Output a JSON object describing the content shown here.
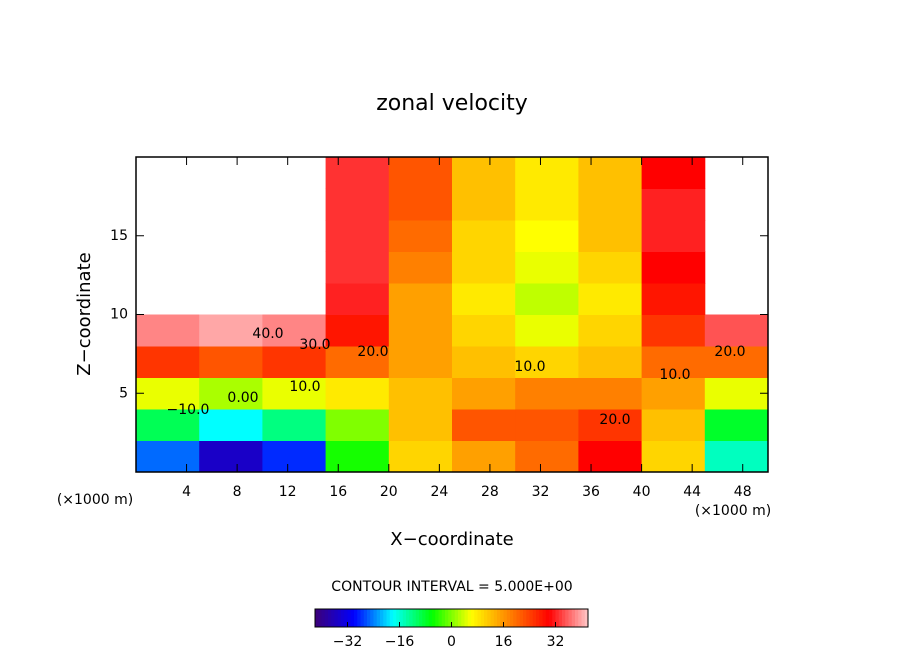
{
  "chart_data": {
    "type": "contour",
    "title": "zonal velocity",
    "xlabel": "X−coordinate",
    "ylabel": "Z−coordinate",
    "x_unit_left": "(×1000 m)",
    "x_unit_right": "(×1000 m)",
    "contour_interval": "CONTOUR INTERVAL = 5.000E+00",
    "x": [
      2.5,
      7.5,
      12.5,
      17.5,
      22.5,
      27.5,
      32.5,
      37.5,
      42.5,
      47.5
    ],
    "y": [
      1,
      3,
      5,
      7,
      9,
      11,
      13,
      15,
      17,
      19
    ],
    "z": [
      [
        -25,
        -35,
        -28,
        -5,
        10,
        15,
        20,
        30,
        10,
        -15
      ],
      [
        -10,
        -18,
        -12,
        0,
        12,
        22,
        22,
        25,
        12,
        -8
      ],
      [
        5,
        2,
        5,
        8,
        12,
        15,
        18,
        18,
        15,
        5
      ],
      [
        25,
        22,
        25,
        20,
        15,
        12,
        10,
        12,
        20,
        20
      ],
      [
        38,
        40,
        38,
        28,
        15,
        10,
        5,
        10,
        25,
        35
      ],
      [
        null,
        null,
        null,
        32,
        15,
        8,
        3,
        8,
        28,
        null
      ],
      [
        null,
        null,
        null,
        33,
        18,
        10,
        5,
        10,
        30,
        null
      ],
      [
        null,
        null,
        null,
        33,
        20,
        10,
        6,
        12,
        32,
        null
      ],
      [
        null,
        null,
        null,
        33,
        22,
        12,
        8,
        12,
        32,
        null
      ],
      [
        null,
        null,
        null,
        33,
        22,
        12,
        8,
        12,
        30,
        null
      ]
    ],
    "xlim": [
      0,
      50
    ],
    "ylim": [
      0,
      20
    ],
    "xticks": [
      4,
      8,
      12,
      16,
      20,
      24,
      28,
      32,
      36,
      40,
      44,
      48
    ],
    "yticks": [
      5,
      10,
      15
    ],
    "clim": [
      -42,
      42
    ],
    "cticks": [
      {
        "value": -32,
        "label": "−32"
      },
      {
        "value": -16,
        "label": "−16"
      },
      0,
      16,
      32
    ],
    "colormap": [
      "#3c0078",
      "#0000ff",
      "#00ffff",
      "#00ff00",
      "#ffff00",
      "#ff8000",
      "#ff0000",
      "#ffc8c8"
    ],
    "contour_labels": [
      "40.0",
      "30.0",
      "20.0",
      "10.0",
      "0.00",
      "−10.0",
      "10.0",
      "10.0",
      "20.0",
      "20.0"
    ]
  }
}
